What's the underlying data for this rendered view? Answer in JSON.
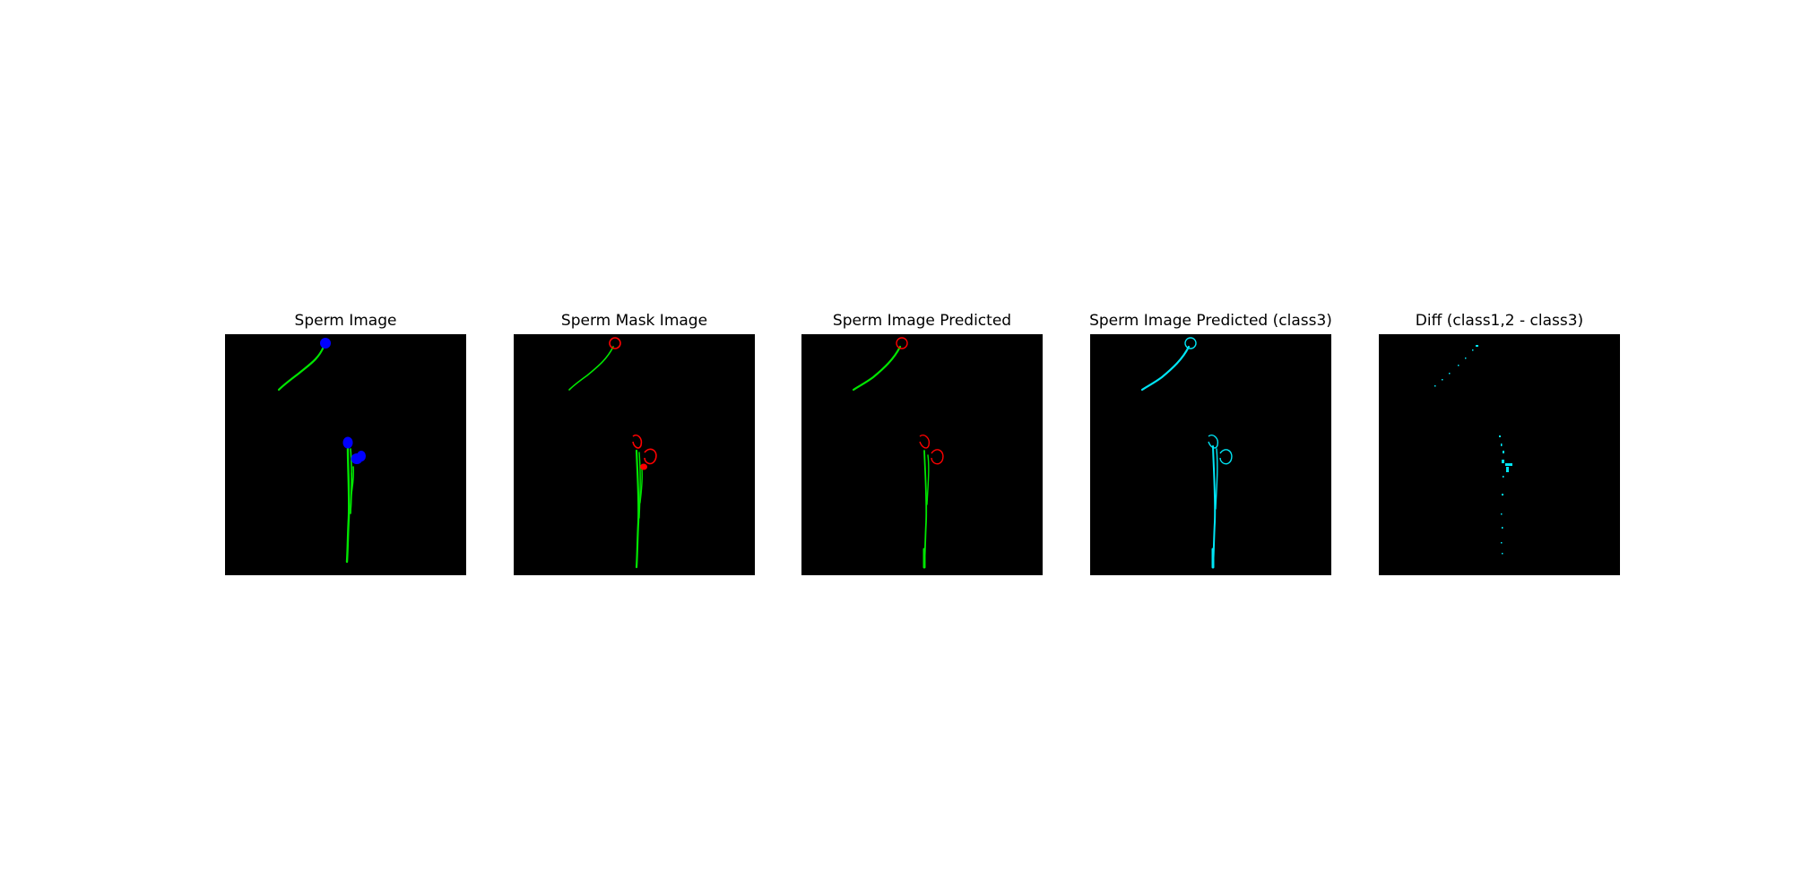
{
  "figure": {
    "panels": [
      {
        "title": "Sperm Image"
      },
      {
        "title": "Sperm Mask Image"
      },
      {
        "title": "Sperm Image Predicted"
      },
      {
        "title": "Sperm Image Predicted (class3)"
      },
      {
        "title": "Diff (class1,2 - class3)"
      }
    ]
  },
  "colors": {
    "background": "#ffffff",
    "image_background": "#000000",
    "head_blue": "#0000ff",
    "tail_green": "#00e600",
    "head_red": "#ff0000",
    "cyan": "#00e5f5"
  }
}
